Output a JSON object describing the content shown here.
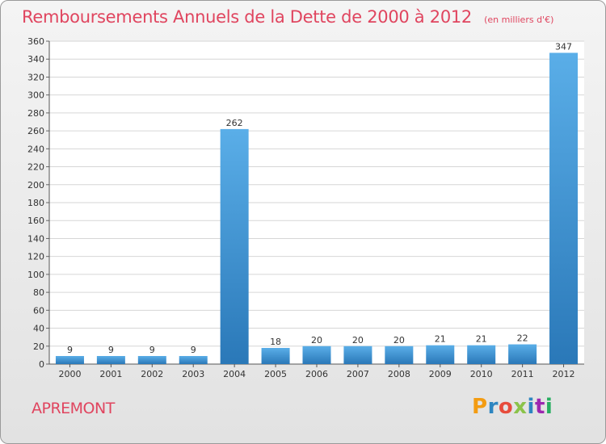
{
  "chart_data": {
    "type": "bar",
    "title": "Remboursements Annuels de la Dette de 2000 à 2012",
    "subtitle": "(en milliers d'€)",
    "categories": [
      "2000",
      "2001",
      "2002",
      "2003",
      "2004",
      "2005",
      "2006",
      "2007",
      "2008",
      "2009",
      "2010",
      "2011",
      "2012"
    ],
    "values": [
      9,
      9,
      9,
      9,
      262,
      18,
      20,
      20,
      20,
      21,
      21,
      22,
      347
    ],
    "ylim": [
      0,
      360
    ],
    "yticks": [
      0,
      20,
      40,
      60,
      80,
      100,
      120,
      140,
      160,
      180,
      200,
      220,
      240,
      260,
      280,
      300,
      320,
      340,
      360
    ],
    "grid": true,
    "colors": {
      "bar_light": "#5aaee8",
      "bar_dark": "#2a78b8",
      "title": "#e0455f"
    }
  },
  "footer": {
    "commune": "APREMONT",
    "logo_text": "Proxiti",
    "logo_colors": [
      "#f39c12",
      "#2e86c1",
      "#e74c3c",
      "#8bc34a",
      "#2e86c1",
      "#9c27b0",
      "#27ae60"
    ]
  }
}
